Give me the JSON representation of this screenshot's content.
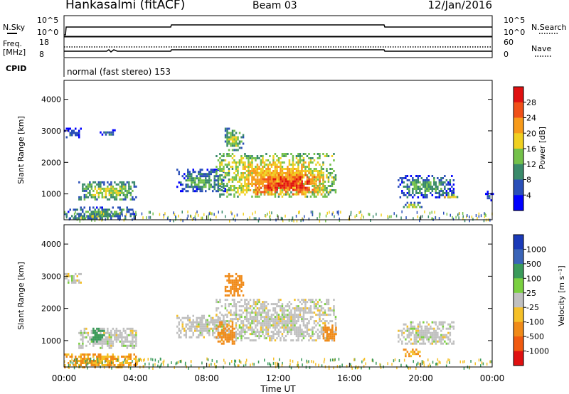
{
  "header": {
    "station": "Hankasalmi (fitACF)",
    "beam": "Beam 03",
    "date": "12/Jan/2016"
  },
  "status_panels": {
    "nsky_label": "N.Sky",
    "nsearch_label": "N.Search",
    "nsky_ticks": [
      "10^5",
      "10^0"
    ],
    "nsearch_ticks": [
      "10^5",
      "10^0"
    ],
    "freq_label": "Freq.",
    "freq_unit": "[MHz]",
    "freq_ticks": [
      "18",
      "8"
    ],
    "nave_label": "Nave",
    "nave_ticks": [
      "60",
      "0"
    ],
    "cpid_label": "CPID",
    "cpid_text": "normal (fast stereo) 153"
  },
  "chart_data": [
    {
      "type": "heatmap",
      "panel": "power",
      "xlabel": "Time UT",
      "ylabel": "Slant Range [km]",
      "x_ticks": [
        "00:00",
        "04:00",
        "08:00",
        "12:00",
        "16:00",
        "20:00",
        "00:00"
      ],
      "x_range_hours": [
        0,
        24
      ],
      "y_range_km": [
        180,
        4600
      ],
      "y_ticks": [
        1000,
        2000,
        3000,
        4000
      ],
      "colorbar_label": "Power [dB]",
      "colorbar_ticks": [
        4,
        8,
        12,
        16,
        20,
        24,
        28
      ],
      "colorbar_colors": [
        "#0000ff",
        "#2a4fb8",
        "#3a8a6a",
        "#74c14a",
        "#f0d020",
        "#f79a1a",
        "#f05018",
        "#e01010"
      ],
      "regions": [
        {
          "t": [
            0.0,
            0.9
          ],
          "r": [
            2800,
            3100
          ],
          "level": 8
        },
        {
          "t": [
            2.0,
            2.8
          ],
          "r": [
            2850,
            3050
          ],
          "level": 8
        },
        {
          "t": [
            0.8,
            4.0
          ],
          "r": [
            800,
            1400
          ],
          "level": 16
        },
        {
          "t": [
            0.0,
            4.0
          ],
          "r": [
            200,
            600
          ],
          "level": 12
        },
        {
          "t": [
            6.3,
            9.0
          ],
          "r": [
            1100,
            1800
          ],
          "level": 12
        },
        {
          "t": [
            8.5,
            15.2
          ],
          "r": [
            900,
            2300
          ],
          "level": 20
        },
        {
          "t": [
            10.5,
            14.5
          ],
          "r": [
            1000,
            1700
          ],
          "level": 28
        },
        {
          "t": [
            9.0,
            10.0
          ],
          "r": [
            2400,
            3100
          ],
          "level": 16
        },
        {
          "t": [
            18.7,
            21.8
          ],
          "r": [
            900,
            1600
          ],
          "level": 12
        },
        {
          "t": [
            19.0,
            20.0
          ],
          "r": [
            550,
            750
          ],
          "level": 16
        },
        {
          "t": [
            21.0,
            22.0
          ],
          "r": [
            900,
            1000
          ],
          "level": 20
        },
        {
          "t": [
            23.6,
            24.0
          ],
          "r": [
            800,
            1100
          ],
          "level": 8
        }
      ]
    },
    {
      "type": "heatmap",
      "panel": "velocity",
      "xlabel": "Time UT",
      "ylabel": "Slant Range [km]",
      "x_ticks": [
        "00:00",
        "04:00",
        "08:00",
        "12:00",
        "16:00",
        "20:00",
        "00:00"
      ],
      "x_range_hours": [
        0,
        24
      ],
      "y_range_km": [
        180,
        4600
      ],
      "y_ticks": [
        1000,
        2000,
        3000,
        4000
      ],
      "colorbar_label": "Velocity [m s⁻¹]",
      "colorbar_ticks": [
        1000,
        500,
        100,
        25,
        -25,
        -100,
        -500,
        -1000
      ],
      "colorbar_colors": [
        "#1a3ab8",
        "#3a64b8",
        "#3a9a5a",
        "#7ad040",
        "#c0c0c0",
        "#f5c028",
        "#f08a18",
        "#f05a10",
        "#e01010"
      ],
      "regions": [
        {
          "t": [
            0.0,
            0.9
          ],
          "r": [
            2800,
            3100
          ],
          "vel": 0
        },
        {
          "t": [
            0.8,
            4.0
          ],
          "r": [
            800,
            1400
          ],
          "vel": 0
        },
        {
          "t": [
            1.5,
            2.2
          ],
          "r": [
            1000,
            1400
          ],
          "vel": 200
        },
        {
          "t": [
            0.0,
            4.0
          ],
          "r": [
            200,
            600
          ],
          "vel": -100
        },
        {
          "t": [
            6.3,
            9.0
          ],
          "r": [
            1100,
            1800
          ],
          "vel": 0
        },
        {
          "t": [
            8.5,
            15.2
          ],
          "r": [
            1000,
            2300
          ],
          "vel": 0
        },
        {
          "t": [
            8.5,
            9.5
          ],
          "r": [
            900,
            1600
          ],
          "vel": -300
        },
        {
          "t": [
            14.5,
            15.2
          ],
          "r": [
            1000,
            1500
          ],
          "vel": -300
        },
        {
          "t": [
            9.0,
            10.0
          ],
          "r": [
            2400,
            3100
          ],
          "vel": -400
        },
        {
          "t": [
            18.7,
            21.8
          ],
          "r": [
            900,
            1600
          ],
          "vel": 0
        },
        {
          "t": [
            19.0,
            20.0
          ],
          "r": [
            550,
            750
          ],
          "vel": -100
        }
      ]
    }
  ]
}
